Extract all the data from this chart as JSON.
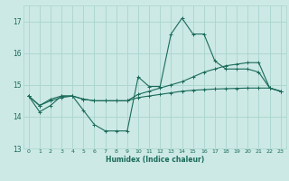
{
  "xlabel": "Humidex (Indice chaleur)",
  "bg_color": "#cce9e5",
  "grid_color": "#aad4ce",
  "line_color": "#1a6b5a",
  "xlim": [
    -0.5,
    23.5
  ],
  "ylim": [
    13.0,
    17.5
  ],
  "yticks": [
    13,
    14,
    15,
    16,
    17
  ],
  "xticks": [
    0,
    1,
    2,
    3,
    4,
    5,
    6,
    7,
    8,
    9,
    10,
    11,
    12,
    13,
    14,
    15,
    16,
    17,
    18,
    19,
    20,
    21,
    22,
    23
  ],
  "main_x": [
    0,
    1,
    2,
    3,
    4,
    5,
    6,
    7,
    8,
    9,
    10,
    11,
    12,
    13,
    14,
    15,
    16,
    17,
    18,
    19,
    20,
    21,
    22,
    23
  ],
  "main_y": [
    14.65,
    14.15,
    14.35,
    14.65,
    14.65,
    14.2,
    13.75,
    13.55,
    13.55,
    13.55,
    15.25,
    14.95,
    14.95,
    16.6,
    17.1,
    16.6,
    16.6,
    15.75,
    15.5,
    15.5,
    15.5,
    15.4,
    14.9,
    14.8
  ],
  "line2_x": [
    0,
    1,
    2,
    3,
    4,
    5,
    6,
    7,
    8,
    9,
    10,
    11,
    12,
    13,
    14,
    15,
    16,
    17,
    18,
    19,
    20,
    21,
    22,
    23
  ],
  "line2_y": [
    14.65,
    14.35,
    14.55,
    14.65,
    14.65,
    14.55,
    14.5,
    14.5,
    14.5,
    14.5,
    14.7,
    14.8,
    14.9,
    15.0,
    15.1,
    15.25,
    15.4,
    15.5,
    15.6,
    15.65,
    15.7,
    15.7,
    14.9,
    14.8
  ],
  "line3_x": [
    0,
    1,
    2,
    3,
    4,
    5,
    6,
    7,
    8,
    9,
    10,
    11,
    12,
    13,
    14,
    15,
    16,
    17,
    18,
    19,
    20,
    21,
    22,
    23
  ],
  "line3_y": [
    14.65,
    14.35,
    14.5,
    14.6,
    14.65,
    14.55,
    14.5,
    14.5,
    14.5,
    14.5,
    14.6,
    14.65,
    14.7,
    14.75,
    14.8,
    14.83,
    14.85,
    14.87,
    14.88,
    14.89,
    14.9,
    14.9,
    14.9,
    14.8
  ]
}
